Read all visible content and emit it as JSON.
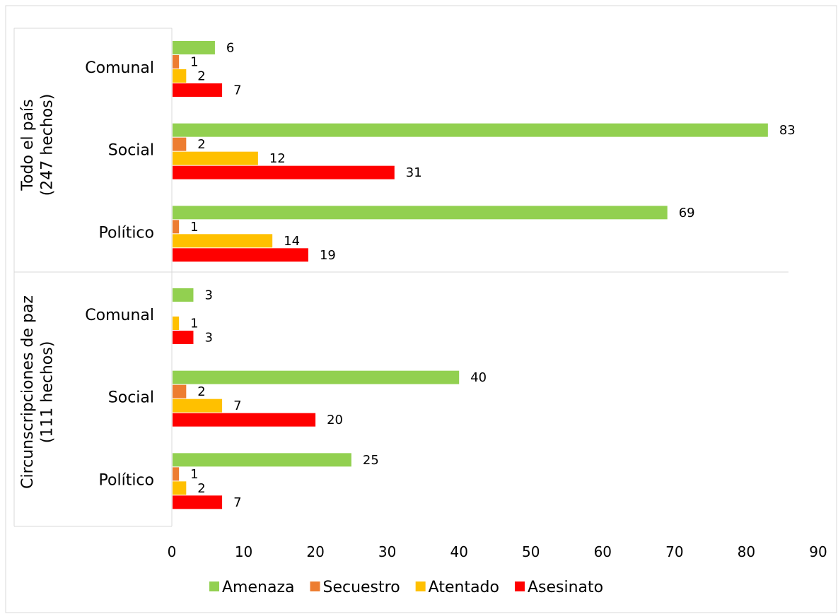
{
  "chart_data": {
    "type": "bar",
    "orientation": "horizontal",
    "title": "",
    "xlabel": "",
    "ylabel": "",
    "xlim": [
      0,
      90
    ],
    "x_ticks": [
      0,
      10,
      20,
      30,
      40,
      50,
      60,
      70,
      80,
      90
    ],
    "grid": false,
    "legend_position": "bottom",
    "groups": [
      {
        "label_line1": "Todo el país",
        "label_line2": "(247 hechos)",
        "categories": [
          {
            "label": "Comunal",
            "values": {
              "Amenaza": 6,
              "Secuestro": 1,
              "Atentado": 2,
              "Asesinato": 7
            }
          },
          {
            "label": "Social",
            "values": {
              "Amenaza": 83,
              "Secuestro": 2,
              "Atentado": 12,
              "Asesinato": 31
            }
          },
          {
            "label": "Político",
            "values": {
              "Amenaza": 69,
              "Secuestro": 1,
              "Atentado": 14,
              "Asesinato": 19
            }
          }
        ]
      },
      {
        "label_line1": "Circunscripciones de paz",
        "label_line2": "(111 hechos)",
        "categories": [
          {
            "label": "Comunal",
            "values": {
              "Amenaza": 3,
              "Secuestro": 0,
              "Atentado": 1,
              "Asesinato": 3
            }
          },
          {
            "label": "Social",
            "values": {
              "Amenaza": 40,
              "Secuestro": 2,
              "Atentado": 7,
              "Asesinato": 20
            }
          },
          {
            "label": "Político",
            "values": {
              "Amenaza": 25,
              "Secuestro": 1,
              "Atentado": 2,
              "Asesinato": 7
            }
          }
        ]
      }
    ],
    "series": [
      {
        "name": "Amenaza",
        "color": "#92d050"
      },
      {
        "name": "Secuestro",
        "color": "#ed7d31"
      },
      {
        "name": "Atentado",
        "color": "#ffc000"
      },
      {
        "name": "Asesinato",
        "color": "#ff0000"
      }
    ]
  }
}
